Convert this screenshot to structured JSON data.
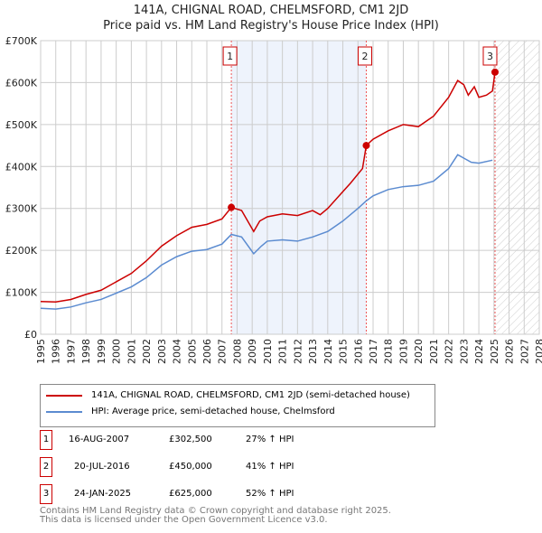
{
  "title_line1": "141A, CHIGNAL ROAD, CHELMSFORD, CM1 2JD",
  "title_line2": "Price paid vs. HM Land Registry's House Price Index (HPI)",
  "chart_data": {
    "type": "line",
    "title": "141A, CHIGNAL ROAD, CHELMSFORD, CM1 2JD — Price paid vs. HM Land Registry's House Price Index (HPI)",
    "xlim": [
      1995,
      2028
    ],
    "ylim": [
      0,
      700000
    ],
    "x_ticks": [
      "1995",
      "1996",
      "1997",
      "1998",
      "1999",
      "2000",
      "2001",
      "2002",
      "2003",
      "2004",
      "2005",
      "2006",
      "2007",
      "2008",
      "2009",
      "2010",
      "2011",
      "2012",
      "2013",
      "2014",
      "2015",
      "2016",
      "2017",
      "2018",
      "2019",
      "2020",
      "2021",
      "2022",
      "2023",
      "2024",
      "2025",
      "2026",
      "2027",
      "2028"
    ],
    "y_ticks": [
      {
        "v": 0,
        "label": "£0"
      },
      {
        "v": 100000,
        "label": "£100K"
      },
      {
        "v": 200000,
        "label": "£200K"
      },
      {
        "v": 300000,
        "label": "£300K"
      },
      {
        "v": 400000,
        "label": "£400K"
      },
      {
        "v": 500000,
        "label": "£500K"
      },
      {
        "v": 600000,
        "label": "£600K"
      },
      {
        "v": 700000,
        "label": "£700K"
      }
    ],
    "grid": true,
    "shaded_region": [
      2007.62,
      2016.55
    ],
    "hatched_from": 2025.1,
    "series": [
      {
        "name": "141A, CHIGNAL ROAD, CHELMSFORD, CM1 2JD (semi-detached house)",
        "color": "#cc0000",
        "points": [
          [
            1995,
            78000
          ],
          [
            1996,
            77000
          ],
          [
            1997,
            83000
          ],
          [
            1998,
            95000
          ],
          [
            1999,
            105000
          ],
          [
            2000,
            125000
          ],
          [
            2001,
            145000
          ],
          [
            2002,
            175000
          ],
          [
            2003,
            210000
          ],
          [
            2004,
            235000
          ],
          [
            2005,
            255000
          ],
          [
            2006,
            262000
          ],
          [
            2007,
            275000
          ],
          [
            2007.62,
            302500
          ],
          [
            2008.3,
            295000
          ],
          [
            2009.1,
            245000
          ],
          [
            2009.5,
            270000
          ],
          [
            2010,
            280000
          ],
          [
            2011,
            287000
          ],
          [
            2012,
            283000
          ],
          [
            2013,
            295000
          ],
          [
            2013.5,
            285000
          ],
          [
            2014,
            300000
          ],
          [
            2015,
            340000
          ],
          [
            2015.5,
            360000
          ],
          [
            2016.3,
            395000
          ],
          [
            2016.55,
            450000
          ],
          [
            2017,
            465000
          ],
          [
            2018,
            485000
          ],
          [
            2019,
            500000
          ],
          [
            2020,
            495000
          ],
          [
            2021,
            520000
          ],
          [
            2022,
            565000
          ],
          [
            2022.6,
            605000
          ],
          [
            2023,
            595000
          ],
          [
            2023.3,
            570000
          ],
          [
            2023.7,
            590000
          ],
          [
            2024,
            565000
          ],
          [
            2024.5,
            570000
          ],
          [
            2024.9,
            580000
          ],
          [
            2025.07,
            625000
          ]
        ]
      },
      {
        "name": "HPI: Average price, semi-detached house, Chelmsford",
        "color": "#5b8bd0",
        "points": [
          [
            1995,
            62000
          ],
          [
            1996,
            60000
          ],
          [
            1997,
            65000
          ],
          [
            1998,
            75000
          ],
          [
            1999,
            83000
          ],
          [
            2000,
            98000
          ],
          [
            2001,
            113000
          ],
          [
            2002,
            135000
          ],
          [
            2003,
            165000
          ],
          [
            2004,
            185000
          ],
          [
            2005,
            198000
          ],
          [
            2006,
            202000
          ],
          [
            2007,
            215000
          ],
          [
            2007.62,
            238000
          ],
          [
            2008.3,
            232000
          ],
          [
            2009.1,
            192000
          ],
          [
            2009.6,
            210000
          ],
          [
            2010,
            222000
          ],
          [
            2011,
            225000
          ],
          [
            2012,
            222000
          ],
          [
            2013,
            232000
          ],
          [
            2014,
            245000
          ],
          [
            2015,
            270000
          ],
          [
            2016,
            300000
          ],
          [
            2016.55,
            318000
          ],
          [
            2017,
            330000
          ],
          [
            2018,
            345000
          ],
          [
            2019,
            352000
          ],
          [
            2020,
            355000
          ],
          [
            2021,
            365000
          ],
          [
            2022,
            395000
          ],
          [
            2022.6,
            428000
          ],
          [
            2023,
            420000
          ],
          [
            2023.5,
            410000
          ],
          [
            2024,
            408000
          ],
          [
            2024.9,
            415000
          ]
        ]
      }
    ],
    "sales": [
      {
        "n": "1",
        "x": 2007.62,
        "y": 302500,
        "date": "16-AUG-2007",
        "price": "£302,500",
        "hpi": "27% ↑ HPI"
      },
      {
        "n": "2",
        "x": 2016.55,
        "y": 450000,
        "date": "20-JUL-2016",
        "price": "£450,000",
        "hpi": "41% ↑ HPI"
      },
      {
        "n": "3",
        "x": 2025.07,
        "y": 625000,
        "date": "24-JAN-2025",
        "price": "£625,000",
        "hpi": "52% ↑ HPI"
      }
    ]
  },
  "footer_line1": "Contains HM Land Registry data © Crown copyright and database right 2025.",
  "footer_line2": "This data is licensed under the Open Government Licence v3.0."
}
